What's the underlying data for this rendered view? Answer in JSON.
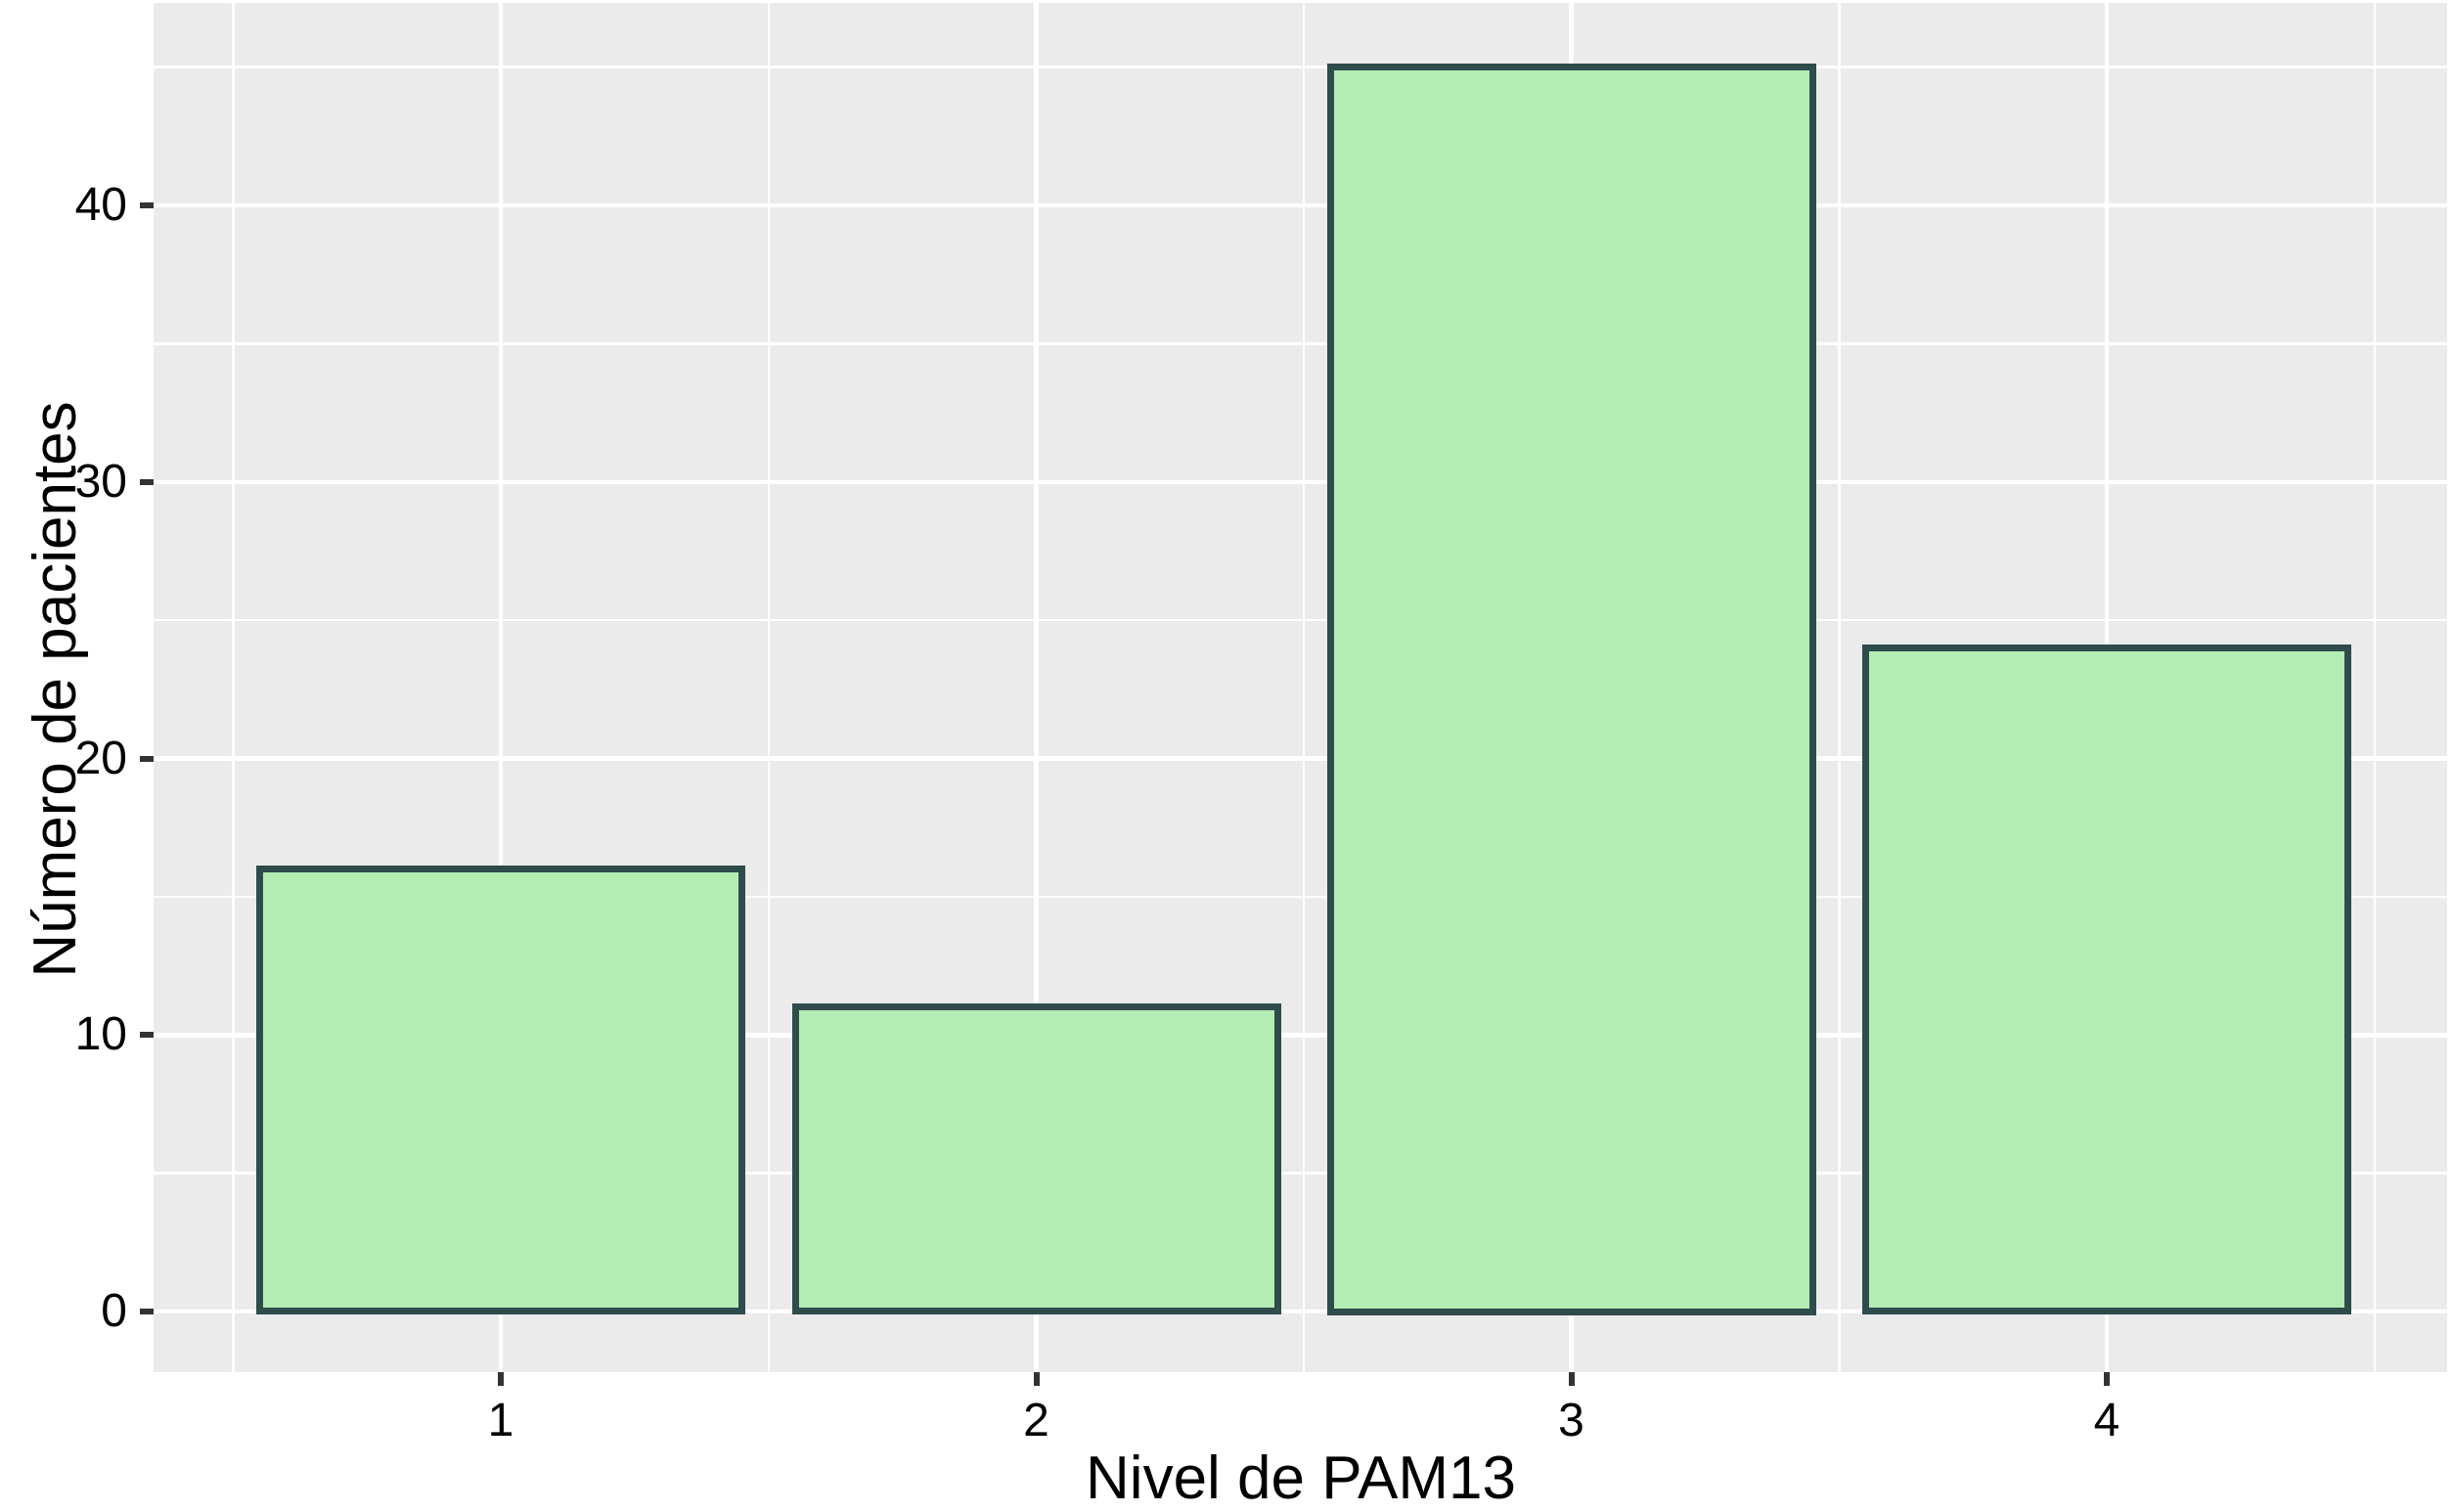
{
  "chart_data": {
    "type": "bar",
    "title": "",
    "categories": [
      "1",
      "2",
      "3",
      "4"
    ],
    "values": [
      16,
      11,
      45,
      24
    ],
    "series": [
      {
        "name": "Número de pacientes",
        "values": [
          16,
          11,
          45,
          24
        ]
      }
    ],
    "xlabel": "Nivel de PAM13",
    "ylabel": "Número de pacientes",
    "ylim": [
      0,
      45
    ],
    "yticks_major": [
      0,
      10,
      20,
      30,
      40
    ],
    "yticks_minor": [
      5,
      15,
      25,
      35,
      45
    ],
    "grid": "major-and-minor-on",
    "legend": "none",
    "panel_style": "ggplot-gray",
    "colors": {
      "bar_fill": "#B4EDB4",
      "bar_stroke": "#2E4C4C",
      "panel_background": "#EBEBEB",
      "gridline": "#FFFFFF",
      "tick_mark": "#333333",
      "text": "#000000",
      "figure_background": "#FFFFFF"
    }
  }
}
